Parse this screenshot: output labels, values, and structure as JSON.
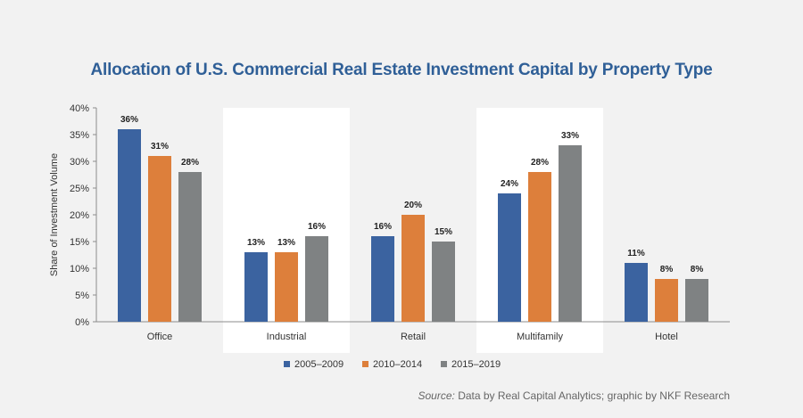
{
  "chart_data": {
    "type": "bar",
    "title": "Allocation of U.S. Commercial Real Estate Investment Capital by Property Type",
    "ylabel": "Share of Investment Volume",
    "xlabel": "",
    "ylim": [
      0,
      40
    ],
    "yticks": [
      "0%",
      "5%",
      "10%",
      "15%",
      "20%",
      "25%",
      "30%",
      "35%",
      "40%"
    ],
    "ytick_values": [
      0,
      5,
      10,
      15,
      20,
      25,
      30,
      35,
      40
    ],
    "categories": [
      "Office",
      "Industrial",
      "Retail",
      "Multifamily",
      "Hotel"
    ],
    "highlighted_categories": [
      "Industrial",
      "Multifamily"
    ],
    "series": [
      {
        "name": "2005–2009",
        "color": "#3b63a0",
        "values": [
          36,
          13,
          16,
          24,
          11
        ],
        "labels": [
          "36%",
          "13%",
          "16%",
          "24%",
          "11%"
        ]
      },
      {
        "name": "2010–2014",
        "color": "#dd7f3b",
        "values": [
          31,
          13,
          20,
          28,
          8
        ],
        "labels": [
          "31%",
          "13%",
          "20%",
          "28%",
          "8%"
        ]
      },
      {
        "name": "2015–2019",
        "color": "#7f8283",
        "values": [
          28,
          16,
          15,
          33,
          8
        ],
        "labels": [
          "28%",
          "16%",
          "15%",
          "33%",
          "8%"
        ]
      }
    ],
    "legend_position": "bottom-center",
    "grid": false
  },
  "source": {
    "prefix": "Source:",
    "text": "Data by Real Capital Analytics; graphic by NKF Research"
  }
}
